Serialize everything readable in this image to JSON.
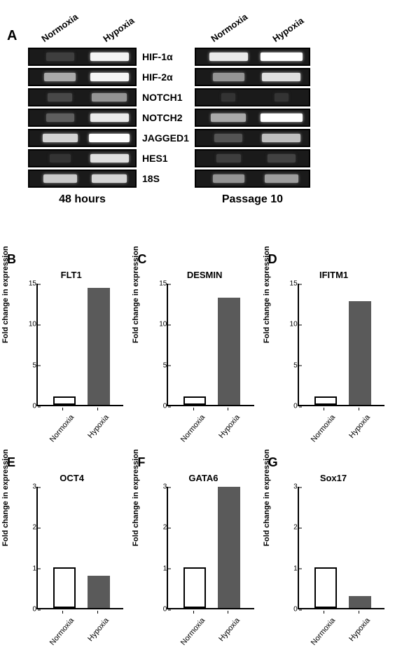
{
  "panelA": {
    "label": "A",
    "leftHeaders": [
      "Normoxia",
      "Hypoxia"
    ],
    "rightHeaders": [
      "Normoxia",
      "Hypoxia"
    ],
    "genes": [
      "HIF-1α",
      "HIF-2α",
      "NOTCH1",
      "NOTCH2",
      "JAGGED1",
      "HES1",
      "18S"
    ],
    "leftSubtitle": "48 hours",
    "rightSubtitle": "Passage 10",
    "leftBands": [
      {
        "n_intensity": 0.1,
        "n_width": 40,
        "h_intensity": 0.95,
        "h_width": 55
      },
      {
        "n_intensity": 0.6,
        "n_width": 45,
        "h_intensity": 0.95,
        "h_width": 55
      },
      {
        "n_intensity": 0.15,
        "n_width": 35,
        "h_intensity": 0.5,
        "h_width": 50
      },
      {
        "n_intensity": 0.25,
        "n_width": 40,
        "h_intensity": 0.9,
        "h_width": 55
      },
      {
        "n_intensity": 0.8,
        "n_width": 50,
        "h_intensity": 1.0,
        "h_width": 58
      },
      {
        "n_intensity": 0.05,
        "n_width": 30,
        "h_intensity": 0.85,
        "h_width": 55
      },
      {
        "n_intensity": 0.75,
        "n_width": 48,
        "h_intensity": 0.8,
        "h_width": 50
      }
    ],
    "rightBands": [
      {
        "n_intensity": 0.9,
        "n_width": 55,
        "h_intensity": 1.0,
        "h_width": 60
      },
      {
        "n_intensity": 0.5,
        "n_width": 45,
        "h_intensity": 0.85,
        "h_width": 55
      },
      {
        "n_intensity": 0.05,
        "n_width": 20,
        "h_intensity": 0.05,
        "h_width": 20
      },
      {
        "n_intensity": 0.6,
        "n_width": 50,
        "h_intensity": 1.0,
        "h_width": 60
      },
      {
        "n_intensity": 0.2,
        "n_width": 40,
        "h_intensity": 0.7,
        "h_width": 55
      },
      {
        "n_intensity": 0.1,
        "n_width": 35,
        "h_intensity": 0.12,
        "h_width": 40
      },
      {
        "n_intensity": 0.5,
        "n_width": 45,
        "h_intensity": 0.55,
        "h_width": 48
      }
    ]
  },
  "charts": [
    {
      "label": "B",
      "title": "FLT1",
      "ylabel": "Fold change in expression",
      "yticks": [
        0,
        5,
        10,
        15
      ],
      "ymax": 15,
      "normoxia": 1,
      "hypoxia": 14.5,
      "xlabels": [
        "Normoxia",
        "Hypoxia"
      ]
    },
    {
      "label": "C",
      "title": "DESMIN",
      "ylabel": "Fold change in expression",
      "yticks": [
        0,
        5,
        10,
        15
      ],
      "ymax": 15,
      "normoxia": 1,
      "hypoxia": 13.3,
      "xlabels": [
        "Normoxia",
        "Hypoxia"
      ]
    },
    {
      "label": "D",
      "title": "IFITM1",
      "ylabel": "Fold change in expression",
      "yticks": [
        0,
        5,
        10,
        15
      ],
      "ymax": 15,
      "normoxia": 1,
      "hypoxia": 12.8,
      "xlabels": [
        "Normoxia",
        "Hypoxia"
      ]
    },
    {
      "label": "E",
      "title": "OCT4",
      "ylabel": "Fold change in expression",
      "yticks": [
        0,
        1,
        2,
        3
      ],
      "ymax": 3,
      "normoxia": 1,
      "hypoxia": 0.8,
      "xlabels": [
        "Normoxia",
        "Hypoxia"
      ]
    },
    {
      "label": "F",
      "title": "GATA6",
      "ylabel": "Fold change in expression",
      "yticks": [
        0,
        1,
        2,
        3
      ],
      "ymax": 3,
      "normoxia": 1,
      "hypoxia": 3,
      "xlabels": [
        "Normoxia",
        "Hypoxia"
      ]
    },
    {
      "label": "G",
      "title": "Sox17",
      "ylabel": "Fold change in expression",
      "yticks": [
        0,
        1,
        2,
        3
      ],
      "ymax": 3,
      "normoxia": 1,
      "hypoxia": 0.3,
      "xlabels": [
        "Normoxia",
        "Hypoxia"
      ]
    }
  ],
  "colors": {
    "bar_hypoxia": "#5a5a5a",
    "bar_normoxia_fill": "#ffffff",
    "bar_normoxia_border": "#000000",
    "gel_bg": "#0d0d0d",
    "text": "#000000"
  }
}
